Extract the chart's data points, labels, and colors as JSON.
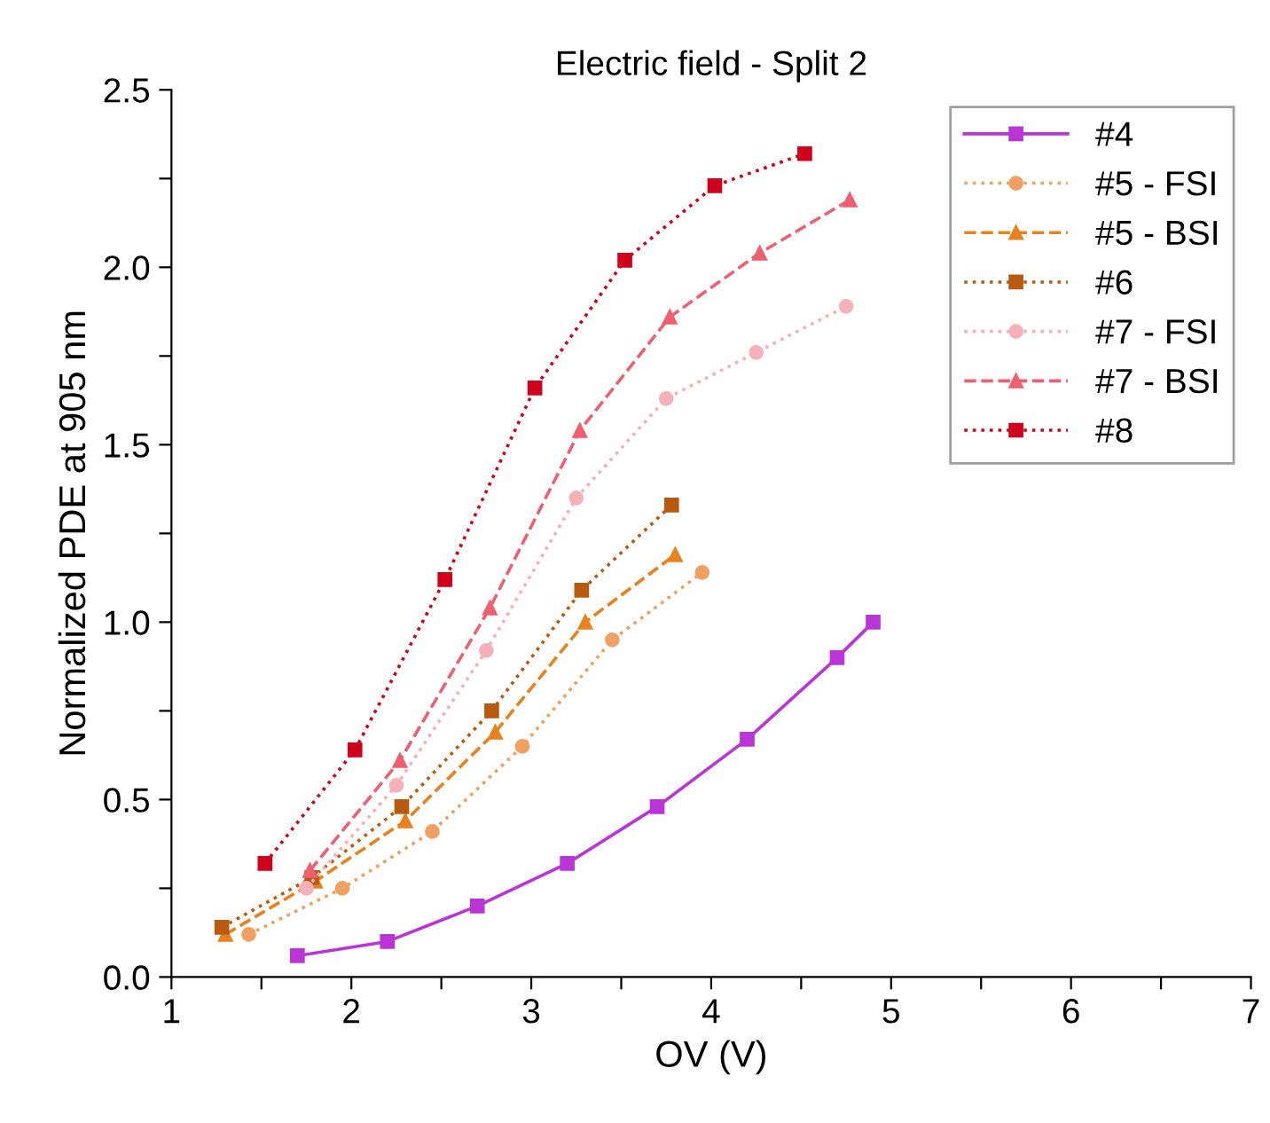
{
  "chart_data": {
    "type": "line",
    "title": "Electric field - Split 2",
    "xlabel": "OV (V)",
    "ylabel": "Normalized PDE at 905 nm",
    "xlim": [
      1,
      7
    ],
    "ylim": [
      0,
      2.5
    ],
    "xticks": [
      1,
      {
        "value": 1.5,
        "label": null
      },
      2,
      {
        "value": 2.5,
        "label": null
      },
      3,
      {
        "value": 3.5,
        "label": null
      },
      4,
      {
        "value": 4.5,
        "label": null
      },
      5,
      {
        "value": 5.5,
        "label": null
      },
      6,
      {
        "value": 6.5,
        "label": null
      },
      7
    ],
    "yticks": [
      {
        "value": 0,
        "label": "0.0"
      },
      {
        "value": 0.25,
        "label": null
      },
      {
        "value": 0.5,
        "label": "0.5"
      },
      {
        "value": 0.75,
        "label": null
      },
      {
        "value": 1,
        "label": "1.0"
      },
      {
        "value": 1.25,
        "label": null
      },
      {
        "value": 1.5,
        "label": "1.5"
      },
      {
        "value": 1.75,
        "label": null
      },
      {
        "value": 2,
        "label": "2.0"
      },
      {
        "value": 2.25,
        "label": null
      },
      {
        "value": 2.5,
        "label": "2.5"
      }
    ],
    "grid": false,
    "legend": "top right",
    "series": [
      {
        "name": "#4",
        "color": "#b935d6",
        "marker": "square",
        "line_style": "solid",
        "x": [
          1.7,
          2.2,
          2.7,
          3.2,
          3.7,
          4.2,
          4.7,
          4.9
        ],
        "values": [
          0.06,
          0.1,
          0.2,
          0.32,
          0.48,
          0.67,
          0.9,
          1.0
        ]
      },
      {
        "name": "#5 - FSI",
        "color": "#f0a060",
        "marker": "circle",
        "line_style": "dotted",
        "x": [
          1.43,
          1.95,
          2.45,
          2.95,
          3.45,
          3.95
        ],
        "values": [
          0.12,
          0.25,
          0.41,
          0.65,
          0.95,
          1.14
        ]
      },
      {
        "name": "#5 - BSI",
        "color": "#e8821e",
        "marker": "triangle",
        "line_style": "dashed",
        "x": [
          1.3,
          1.8,
          2.3,
          2.8,
          3.3,
          3.8
        ],
        "values": [
          0.12,
          0.27,
          0.44,
          0.69,
          1.0,
          1.19
        ]
      },
      {
        "name": "#6",
        "color": "#b85a10",
        "marker": "square",
        "line_style": "dotted",
        "x": [
          1.28,
          1.78,
          2.28,
          2.78,
          3.28,
          3.78
        ],
        "values": [
          0.14,
          0.28,
          0.48,
          0.75,
          1.09,
          1.33
        ]
      },
      {
        "name": "#7 - FSI",
        "color": "#f5b0b8",
        "marker": "circle",
        "line_style": "dotted",
        "x": [
          1.75,
          2.25,
          2.75,
          3.25,
          3.75,
          4.25,
          4.75
        ],
        "values": [
          0.25,
          0.54,
          0.92,
          1.35,
          1.63,
          1.76,
          1.89
        ]
      },
      {
        "name": "#7 - BSI",
        "color": "#ee6070",
        "marker": "triangle",
        "line_style": "dashed",
        "x": [
          1.77,
          2.27,
          2.77,
          3.27,
          3.77,
          4.27,
          4.77
        ],
        "values": [
          0.3,
          0.61,
          1.04,
          1.54,
          1.86,
          2.04,
          2.19
        ]
      },
      {
        "name": "#8",
        "color": "#d0021b",
        "marker": "square",
        "line_style": "dotted",
        "x": [
          1.52,
          2.02,
          2.52,
          3.02,
          3.52,
          4.02,
          4.52
        ],
        "values": [
          0.32,
          0.64,
          1.12,
          1.66,
          2.02,
          2.23,
          2.32
        ]
      }
    ]
  }
}
